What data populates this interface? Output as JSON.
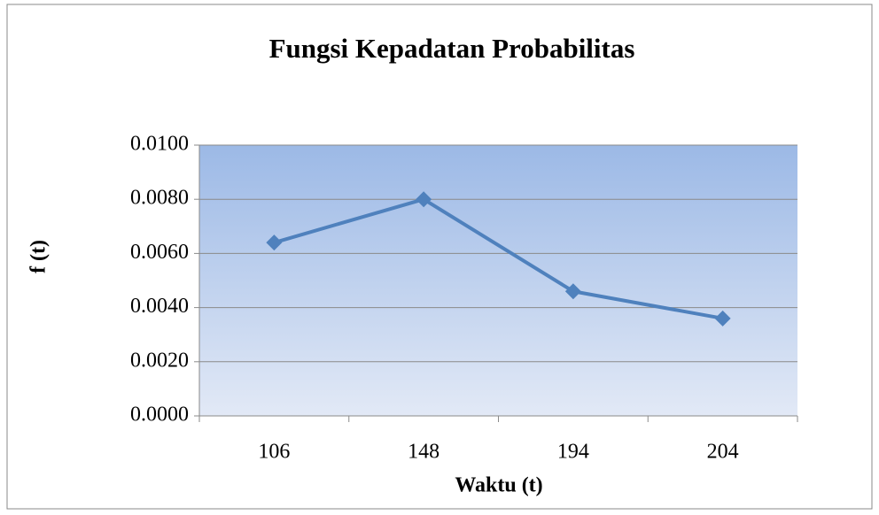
{
  "chart_data": {
    "type": "line",
    "title": "Fungsi Kepadatan Probabilitas",
    "x_label": "Waktu (t)",
    "y_label": "f (t)",
    "categories": [
      "106",
      "148",
      "194",
      "204"
    ],
    "series": [
      {
        "name": "f (t)",
        "color": "#4f81bd",
        "values": [
          0.0064,
          0.008,
          0.0046,
          0.0036
        ]
      }
    ],
    "ylim": [
      0,
      0.01
    ],
    "yticks": [
      {
        "value": 0,
        "label": "0.0000"
      },
      {
        "value": 0.002,
        "label": "0.0020"
      },
      {
        "value": 0.004,
        "label": "0.0040"
      },
      {
        "value": 0.006,
        "label": "0.0060"
      },
      {
        "value": 0.008,
        "label": "0.0080"
      },
      {
        "value": 0.01,
        "label": "0.0100"
      }
    ],
    "grid": true
  }
}
